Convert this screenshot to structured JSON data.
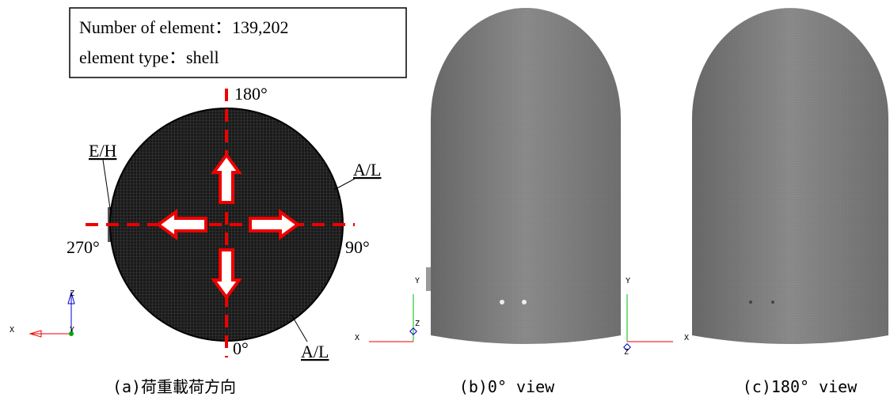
{
  "panel_a": {
    "info_box": [
      "Number of element：139,202",
      "element type：shell"
    ],
    "angles": {
      "top": "180°",
      "right": "90°",
      "bottom": "0°",
      "left": "270°"
    },
    "labels": {
      "eh": "E/H",
      "al_upper": "A/L",
      "al_lower": "A/L"
    },
    "axes": {
      "vertical": "Z",
      "horizontal": "X",
      "depth": "Y"
    },
    "caption": "(a)荷重載荷方向"
  },
  "panel_b": {
    "axes": {
      "vertical": "Y",
      "horizontal": "X",
      "depth": "Z"
    },
    "caption": "(b)0° view"
  },
  "panel_c": {
    "axes": {
      "vertical": "Y",
      "horizontal": "X",
      "depth": "Z"
    },
    "caption": "(c)180° view"
  }
}
